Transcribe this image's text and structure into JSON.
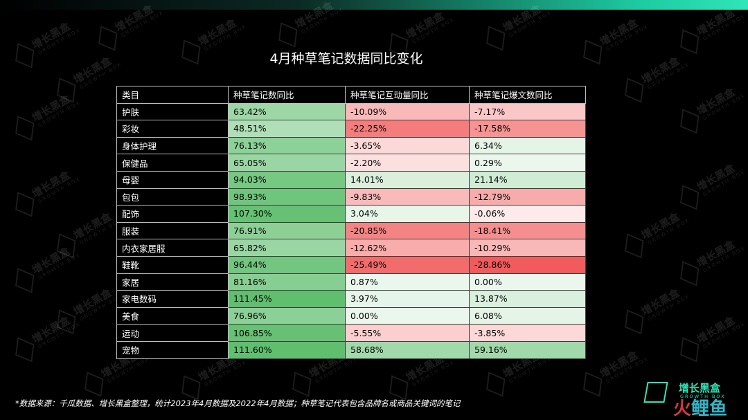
{
  "title": "4月种草笔记数据同比变化",
  "watermark": {
    "text": "增长黑盒",
    "sub": "GROWTH BOX"
  },
  "colors": {
    "background": "#000000",
    "positive": "#5cbd6b",
    "negative": "#f15a5a",
    "accent": "#2ee6b8"
  },
  "chart_data": {
    "type": "table",
    "title": "4月种草笔记数据同比变化",
    "columns": [
      "类目",
      "种草笔记数同比",
      "种草笔记互动量同比",
      "种草笔记爆文数同比"
    ],
    "rows": [
      {
        "category": "护肤",
        "values": [
          63.42,
          -10.09,
          -7.17
        ],
        "labels": [
          "63.42%",
          "-10.09%",
          "-7.17%"
        ]
      },
      {
        "category": "彩妆",
        "values": [
          48.51,
          -22.25,
          -17.58
        ],
        "labels": [
          "48.51%",
          "-22.25%",
          "-17.58%"
        ]
      },
      {
        "category": "身体护理",
        "values": [
          76.13,
          -3.65,
          6.34
        ],
        "labels": [
          "76.13%",
          "-3.65%",
          "6.34%"
        ]
      },
      {
        "category": "保健品",
        "values": [
          65.05,
          -2.2,
          0.29
        ],
        "labels": [
          "65.05%",
          "-2.20%",
          "0.29%"
        ]
      },
      {
        "category": "母婴",
        "values": [
          94.03,
          14.01,
          21.14
        ],
        "labels": [
          "94.03%",
          "14.01%",
          "21.14%"
        ]
      },
      {
        "category": "包包",
        "values": [
          98.93,
          -9.83,
          -12.79
        ],
        "labels": [
          "98.93%",
          "-9.83%",
          "-12.79%"
        ]
      },
      {
        "category": "配饰",
        "values": [
          107.3,
          3.04,
          -0.06
        ],
        "labels": [
          "107.30%",
          "3.04%",
          "-0.06%"
        ]
      },
      {
        "category": "服装",
        "values": [
          76.91,
          -20.85,
          -18.41
        ],
        "labels": [
          "76.91%",
          "-20.85%",
          "-18.41%"
        ]
      },
      {
        "category": "内衣家居服",
        "values": [
          65.82,
          -12.62,
          -10.29
        ],
        "labels": [
          "65.82%",
          "-12.62%",
          "-10.29%"
        ]
      },
      {
        "category": "鞋靴",
        "values": [
          96.44,
          -25.49,
          -28.86
        ],
        "labels": [
          "96.44%",
          "-25.49%",
          "-28.86%"
        ]
      },
      {
        "category": "家居",
        "values": [
          81.16,
          0.87,
          0.0
        ],
        "labels": [
          "81.16%",
          "0.87%",
          "0.00%"
        ]
      },
      {
        "category": "家电数码",
        "values": [
          111.45,
          3.97,
          13.87
        ],
        "labels": [
          "111.45%",
          "3.97%",
          "13.87%"
        ]
      },
      {
        "category": "美食",
        "values": [
          76.96,
          0.0,
          6.08
        ],
        "labels": [
          "76.96%",
          "0.00%",
          "6.08%"
        ]
      },
      {
        "category": "运动",
        "values": [
          106.85,
          -5.55,
          -3.85
        ],
        "labels": [
          "106.85%",
          "-5.55%",
          "-3.85%"
        ]
      },
      {
        "category": "宠物",
        "values": [
          111.6,
          58.68,
          59.16
        ],
        "labels": [
          "111.60%",
          "58.68%",
          "59.16%"
        ]
      }
    ]
  },
  "footnote": "*数据来源：千瓜数据、增长黑盒整理，统计2023年4月数据及2022年4月数据；种草笔记代表包含品牌名或商品关键词的笔记",
  "logo": {
    "name": "增长黑盒",
    "sub": "GROWTH BOX",
    "big_left": "火",
    "big_right": "鲤鱼"
  }
}
